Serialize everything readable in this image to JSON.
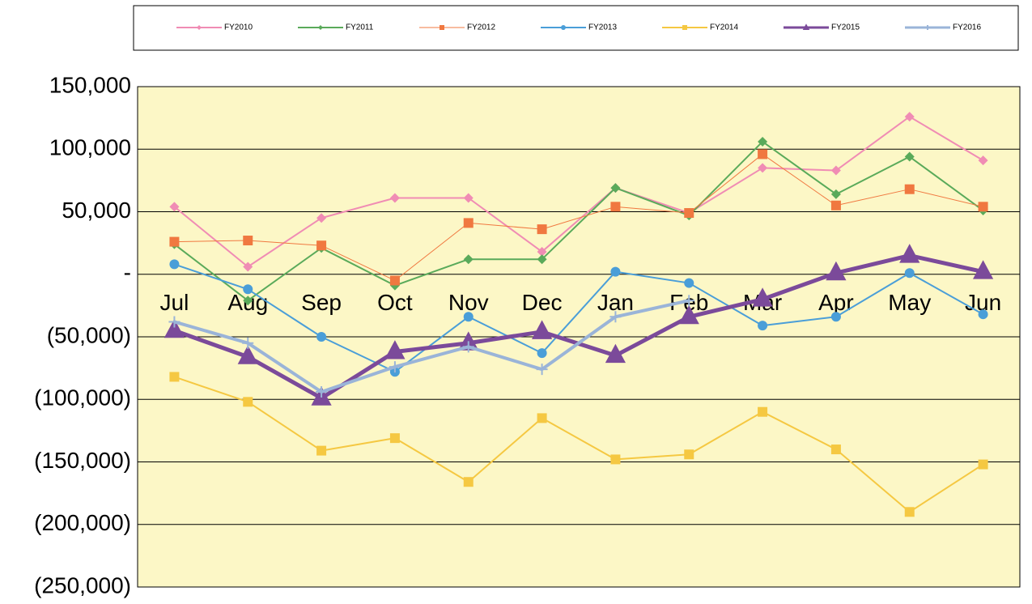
{
  "chart_data": {
    "type": "line",
    "categories": [
      "Jul",
      "Aug",
      "Sep",
      "Oct",
      "Nov",
      "Dec",
      "Jan",
      "Feb",
      "Mar",
      "Apr",
      "May",
      "Jun"
    ],
    "series": [
      {
        "name": "FY2010",
        "color": "#f08cb4",
        "marker": "diamond",
        "line_width": 2,
        "values": [
          54000,
          6000,
          45000,
          61000,
          61000,
          18000,
          69000,
          49000,
          85000,
          83000,
          126000,
          91000
        ]
      },
      {
        "name": "FY2011",
        "color": "#5aaa5a",
        "marker": "diamond",
        "line_width": 2,
        "values": [
          24000,
          -21000,
          21000,
          -9000,
          12000,
          12000,
          69000,
          47000,
          106000,
          64000,
          94000,
          51000
        ]
      },
      {
        "name": "FY2012",
        "color": "#f07840",
        "marker": "square",
        "line_width": 1,
        "values": [
          26000,
          27000,
          23000,
          -5000,
          41000,
          36000,
          54000,
          49000,
          96000,
          55000,
          68000,
          54000
        ]
      },
      {
        "name": "FY2013",
        "color": "#4a9ed8",
        "marker": "circle",
        "line_width": 2,
        "values": [
          8000,
          -12000,
          -50000,
          -78000,
          -34000,
          -63000,
          2000,
          -7000,
          -41000,
          -34000,
          1000,
          -32000
        ]
      },
      {
        "name": "FY2014",
        "color": "#f5c842",
        "marker": "square",
        "line_width": 2,
        "values": [
          -82000,
          -102000,
          -141000,
          -131000,
          -166000,
          -115000,
          -148000,
          -144000,
          -110000,
          -140000,
          -190000,
          -152000
        ]
      },
      {
        "name": "FY2015",
        "color": "#7b4a9a",
        "marker": "triangle",
        "line_width": 5,
        "values": [
          -45000,
          -66000,
          -99000,
          -62000,
          -55000,
          -46000,
          -65000,
          -34000,
          -20000,
          1000,
          15000,
          2000
        ]
      },
      {
        "name": "FY2016",
        "color": "#9ab4d8",
        "marker": "plus",
        "line_width": 4,
        "values": [
          -38000,
          -55000,
          -94000,
          -74000,
          -58000,
          -76000,
          -34000,
          -21000,
          null,
          null,
          null,
          null
        ]
      }
    ],
    "ylim": [
      -250000,
      150000
    ],
    "yticks": [
      {
        "value": -250000,
        "label": "(250,000)"
      },
      {
        "value": -200000,
        "label": "(200,000)"
      },
      {
        "value": -150000,
        "label": "(150,000)"
      },
      {
        "value": -100000,
        "label": "(100,000)"
      },
      {
        "value": -50000,
        "label": "(50,000)"
      },
      {
        "value": 0,
        "label": "-"
      },
      {
        "value": 50000,
        "label": "50,000"
      },
      {
        "value": 100000,
        "label": "100,000"
      },
      {
        "value": 150000,
        "label": "150,000"
      }
    ],
    "grid": true,
    "background": "#fcf7c6",
    "legend": "top"
  }
}
